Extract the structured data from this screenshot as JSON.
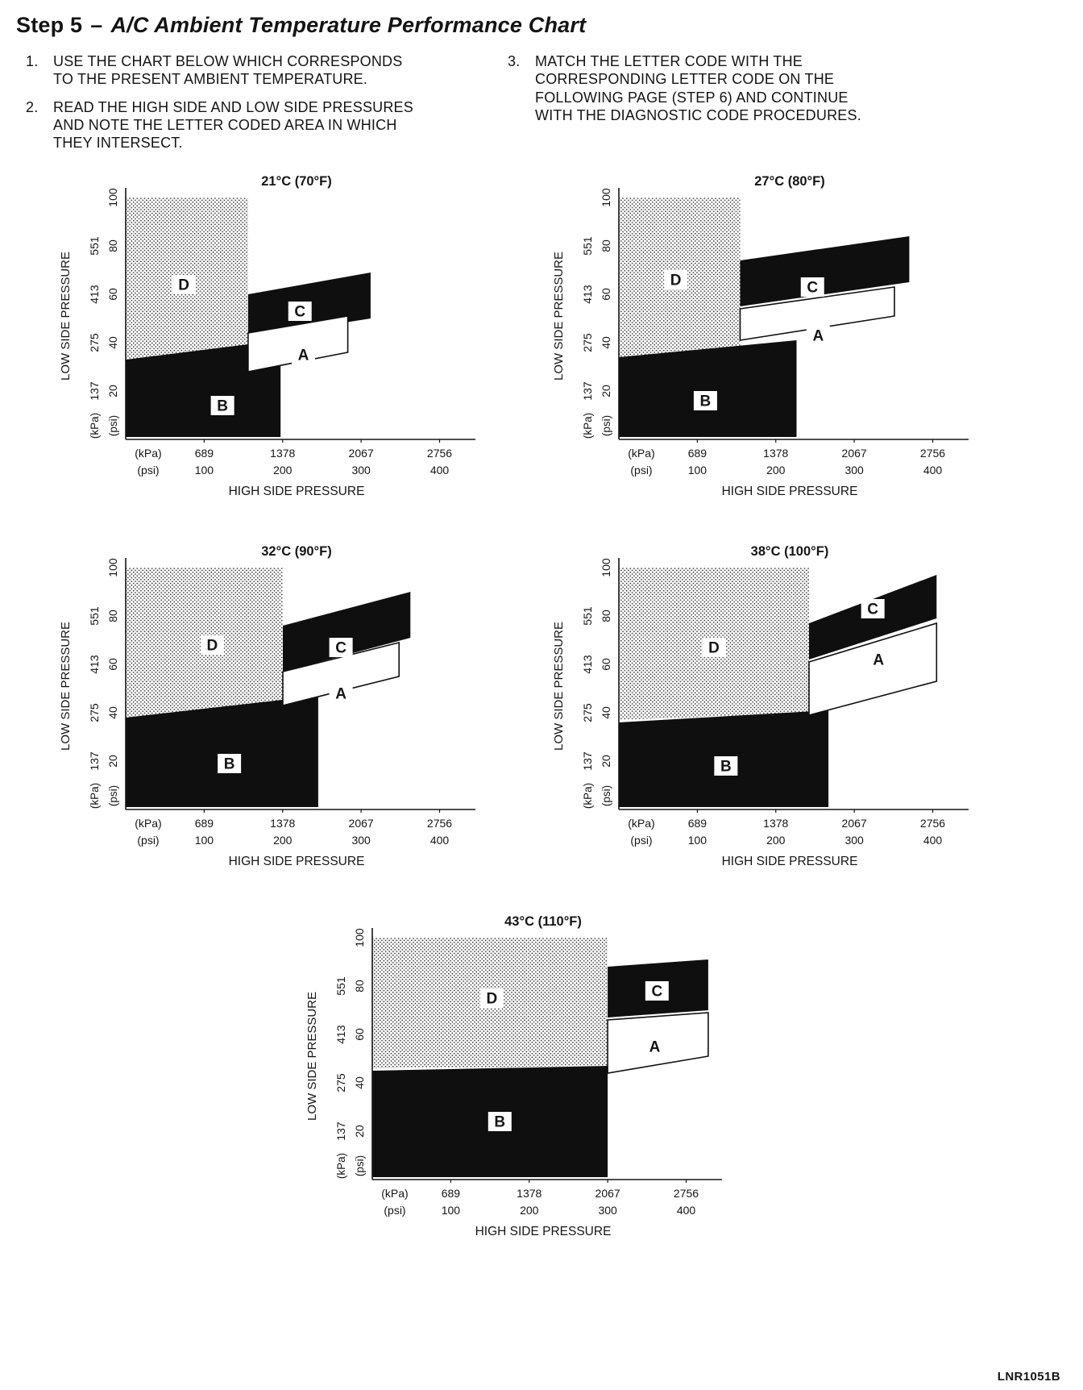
{
  "page": {
    "step_label": "Step 5",
    "separator": "–",
    "title": "A/C Ambient Temperature Performance Chart",
    "footer_code": "LNR1051B"
  },
  "instructions": [
    {
      "number": "1.",
      "text": "USE THE CHART BELOW WHICH CORRESPONDS TO THE PRESENT AMBIENT TEMPERATURE."
    },
    {
      "number": "2.",
      "text": "READ THE HIGH SIDE AND LOW SIDE PRESSURES AND NOTE THE LETTER CODED AREA IN WHICH THEY INTERSECT."
    },
    {
      "number": "3.",
      "text": "MATCH THE LETTER CODE WITH THE CORRESPONDING LETTER CODE ON THE FOLLOWING PAGE (STEP 6) AND CONTINUE WITH THE DIAGNOSTIC CODE PROCEDURES."
    }
  ],
  "colors": {
    "ink": "#151515",
    "paper": "#ffffff",
    "region_black": "#0f0f0f"
  },
  "chart_data": {
    "type": "area",
    "x_axis": {
      "title": "HIGH SIDE PRESSURE",
      "unit_labels": [
        "(kPa)",
        "(psi)"
      ],
      "domain_kpa": [
        0,
        3000
      ],
      "ticks": [
        {
          "kpa": 689,
          "kpa_label": "689",
          "psi_label": "100"
        },
        {
          "kpa": 1378,
          "kpa_label": "1378",
          "psi_label": "200"
        },
        {
          "kpa": 2067,
          "kpa_label": "2067",
          "psi_label": "300"
        },
        {
          "kpa": 2756,
          "kpa_label": "2756",
          "psi_label": "400"
        }
      ]
    },
    "y_axis": {
      "title": "LOW SIDE PRESSURE",
      "unit_labels": [
        "(kPa)",
        "(psi)"
      ],
      "domain_psi": [
        0,
        102
      ],
      "ticks_psi": [
        {
          "value": 20,
          "label": "20"
        },
        {
          "value": 40,
          "label": "40"
        },
        {
          "value": 60,
          "label": "60"
        },
        {
          "value": 80,
          "label": "80"
        },
        {
          "value": 100,
          "label": "100"
        }
      ],
      "ticks_kpa": [
        {
          "label": "137",
          "at_psi": 20
        },
        {
          "label": "275",
          "at_psi": 40
        },
        {
          "label": "413",
          "at_psi": 60
        },
        {
          "label": "551",
          "at_psi": 80
        }
      ]
    },
    "charts": [
      {
        "id": "21c-70f",
        "title": "21°C (70°F)",
        "regions": [
          {
            "letter": "D",
            "style": "dotted",
            "points_kpa_psi": [
              [
                0,
                100
              ],
              [
                1075,
                100
              ],
              [
                1075,
                38
              ],
              [
                0,
                33
              ]
            ],
            "label_at": [
              510,
              64
            ]
          },
          {
            "letter": "B",
            "style": "black",
            "points_kpa_psi": [
              [
                0,
                33
              ],
              [
                1360,
                41
              ],
              [
                1360,
                1
              ],
              [
                0,
                1
              ]
            ],
            "label_at": [
              850,
              14
            ]
          },
          {
            "letter": "C",
            "style": "black",
            "points_kpa_psi": [
              [
                1075,
                60
              ],
              [
                2150,
                69
              ],
              [
                2150,
                50
              ],
              [
                1075,
                42
              ]
            ],
            "label_at": [
              1530,
              53
            ]
          },
          {
            "letter": "A",
            "style": "white",
            "points_kpa_psi": [
              [
                1075,
                44
              ],
              [
                1950,
                51
              ],
              [
                1950,
                36
              ],
              [
                1075,
                28
              ]
            ],
            "label_at": [
              1560,
              35
            ]
          }
        ]
      },
      {
        "id": "27c-80f",
        "title": "27°C (80°F)",
        "regions": [
          {
            "letter": "D",
            "style": "dotted",
            "points_kpa_psi": [
              [
                0,
                100
              ],
              [
                1065,
                100
              ],
              [
                1065,
                37
              ],
              [
                0,
                34
              ]
            ],
            "label_at": [
              500,
              66
            ]
          },
          {
            "letter": "B",
            "style": "black",
            "points_kpa_psi": [
              [
                0,
                34
              ],
              [
                1560,
                41
              ],
              [
                1560,
                1
              ],
              [
                0,
                1
              ]
            ],
            "label_at": [
              760,
              16
            ]
          },
          {
            "letter": "C",
            "style": "black",
            "points_kpa_psi": [
              [
                1065,
                74
              ],
              [
                2550,
                84
              ],
              [
                2550,
                65
              ],
              [
                1065,
                55
              ]
            ],
            "label_at": [
              1700,
              63
            ]
          },
          {
            "letter": "A",
            "style": "white",
            "points_kpa_psi": [
              [
                1065,
                54
              ],
              [
                2420,
                63
              ],
              [
                2420,
                51
              ],
              [
                1065,
                41
              ]
            ],
            "label_at": [
              1750,
              43
            ]
          }
        ]
      },
      {
        "id": "32c-90f",
        "title": "32°C (90°F)",
        "regions": [
          {
            "letter": "D",
            "style": "dotted",
            "points_kpa_psi": [
              [
                0,
                100
              ],
              [
                1380,
                100
              ],
              [
                1380,
                45
              ],
              [
                0,
                38
              ]
            ],
            "label_at": [
              760,
              68
            ]
          },
          {
            "letter": "B",
            "style": "black",
            "points_kpa_psi": [
              [
                0,
                38
              ],
              [
                1690,
                47
              ],
              [
                1690,
                1
              ],
              [
                0,
                1
              ]
            ],
            "label_at": [
              910,
              19
            ]
          },
          {
            "letter": "C",
            "style": "black",
            "points_kpa_psi": [
              [
                1380,
                76
              ],
              [
                2500,
                90
              ],
              [
                2500,
                71
              ],
              [
                1380,
                57
              ]
            ],
            "label_at": [
              1890,
              67
            ]
          },
          {
            "letter": "A",
            "style": "white",
            "points_kpa_psi": [
              [
                1380,
                57
              ],
              [
                2400,
                69
              ],
              [
                2400,
                55
              ],
              [
                1380,
                43
              ]
            ],
            "label_at": [
              1890,
              48
            ]
          }
        ]
      },
      {
        "id": "38c-100f",
        "title": "38°C (100°F)",
        "regions": [
          {
            "letter": "D",
            "style": "dotted",
            "points_kpa_psi": [
              [
                0,
                100
              ],
              [
                1670,
                100
              ],
              [
                1670,
                40
              ],
              [
                0,
                37
              ]
            ],
            "label_at": [
              835,
              67
            ]
          },
          {
            "letter": "B",
            "style": "black",
            "points_kpa_psi": [
              [
                0,
                36
              ],
              [
                1840,
                41
              ],
              [
                1840,
                1
              ],
              [
                0,
                1
              ]
            ],
            "label_at": [
              940,
              18
            ]
          },
          {
            "letter": "C",
            "style": "black",
            "points_kpa_psi": [
              [
                1670,
                77
              ],
              [
                2790,
                97
              ],
              [
                2790,
                79
              ],
              [
                1670,
                62
              ]
            ],
            "label_at": [
              2230,
              83
            ]
          },
          {
            "letter": "A",
            "style": "white",
            "points_kpa_psi": [
              [
                1670,
                61
              ],
              [
                2790,
                77
              ],
              [
                2790,
                53
              ],
              [
                1670,
                39
              ]
            ],
            "label_at": [
              2280,
              62
            ]
          }
        ]
      },
      {
        "id": "43c-110f",
        "title": "43°C (110°F)",
        "regions": [
          {
            "letter": "D",
            "style": "dotted",
            "points_kpa_psi": [
              [
                0,
                100
              ],
              [
                2067,
                100
              ],
              [
                2067,
                47
              ],
              [
                0,
                46
              ]
            ],
            "label_at": [
              1050,
              75
            ]
          },
          {
            "letter": "B",
            "style": "black",
            "points_kpa_psi": [
              [
                0,
                45
              ],
              [
                2067,
                47
              ],
              [
                2067,
                1
              ],
              [
                0,
                1
              ]
            ],
            "label_at": [
              1120,
              24
            ]
          },
          {
            "letter": "C",
            "style": "black",
            "points_kpa_psi": [
              [
                2067,
                88
              ],
              [
                2950,
                91
              ],
              [
                2950,
                70
              ],
              [
                2067,
                67
              ]
            ],
            "label_at": [
              2500,
              78
            ]
          },
          {
            "letter": "A",
            "style": "white",
            "points_kpa_psi": [
              [
                2067,
                66
              ],
              [
                2950,
                69
              ],
              [
                2950,
                51
              ],
              [
                2067,
                44
              ]
            ],
            "label_at": [
              2480,
              55
            ]
          }
        ]
      }
    ]
  }
}
